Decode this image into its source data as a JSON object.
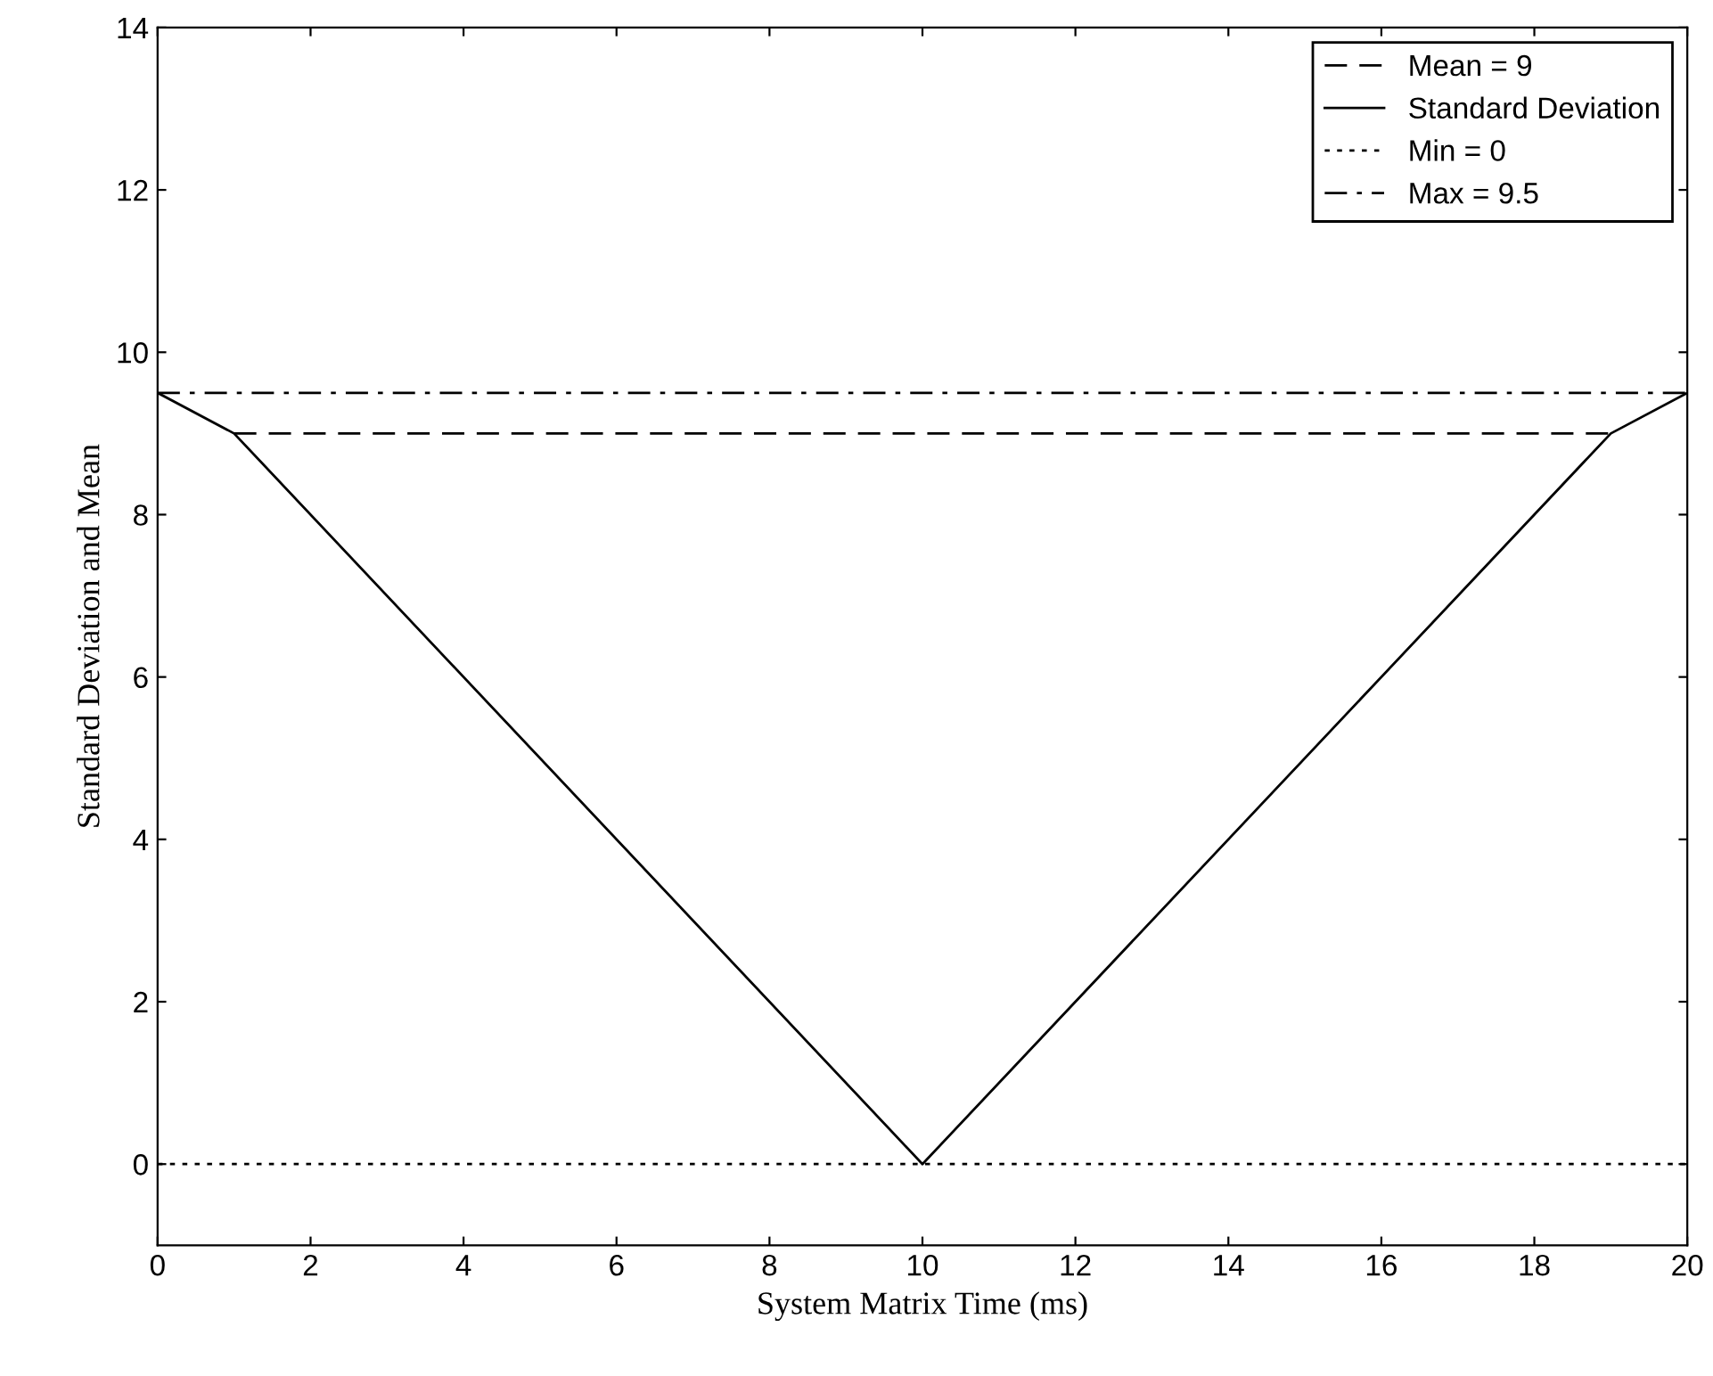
{
  "chart_data": {
    "type": "line",
    "xlabel": "System Matrix Time (ms)",
    "ylabel": "Standard Deviation and Mean",
    "xlim": [
      0,
      20
    ],
    "xticks": [
      0,
      2,
      4,
      6,
      8,
      10,
      12,
      14,
      16,
      18,
      20
    ],
    "ylim": [
      -1,
      14
    ],
    "yticks": [
      0,
      2,
      4,
      6,
      8,
      10,
      12,
      14
    ],
    "grid": false,
    "legend": "top right",
    "marker": "none",
    "series": [
      {
        "name": "Mean = 9",
        "color": "#000000",
        "line_style": "dashed",
        "x": [
          1,
          19
        ],
        "values": [
          9,
          9
        ]
      },
      {
        "name": "Standard Deviation",
        "color": "#000000",
        "line_style": "solid",
        "x": [
          0,
          1,
          10,
          19,
          20
        ],
        "values": [
          9.5,
          9,
          0,
          9,
          9.5
        ]
      },
      {
        "name": "Min = 0",
        "color": "#000000",
        "line_style": "dotted",
        "x": [
          0,
          20
        ],
        "values": [
          0,
          0
        ]
      },
      {
        "name": "Max = 9.5",
        "color": "#000000",
        "line_style": "dashdot",
        "x": [
          0,
          20
        ],
        "values": [
          9.5,
          9.5
        ]
      }
    ]
  }
}
